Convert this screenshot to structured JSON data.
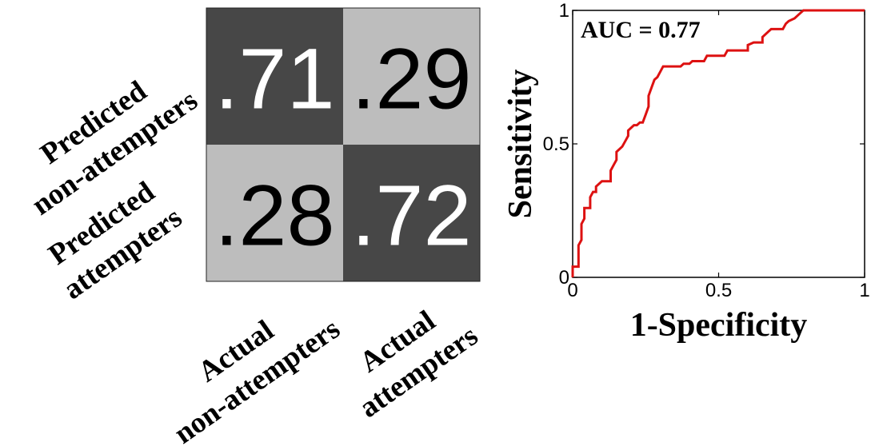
{
  "chart_data": [
    {
      "type": "heatmap",
      "row_labels": [
        [
          "Predicted",
          "non-attempters"
        ],
        [
          "Predicted",
          "attempters"
        ]
      ],
      "col_labels": [
        [
          "Actual",
          "non-attempters"
        ],
        [
          "Actual",
          "attempters"
        ]
      ],
      "cells": [
        [
          {
            "value": 0.71,
            "label": ".71",
            "fill": "#474747",
            "text_color": "#ffffff"
          },
          {
            "value": 0.29,
            "label": ".29",
            "fill": "#bdbdbd",
            "text_color": "#000000"
          }
        ],
        [
          {
            "value": 0.28,
            "label": ".28",
            "fill": "#bdbdbd",
            "text_color": "#000000"
          },
          {
            "value": 0.72,
            "label": ".72",
            "fill": "#474747",
            "text_color": "#ffffff"
          }
        ]
      ]
    },
    {
      "type": "line",
      "xlabel": "1-Specificity",
      "ylabel": "Sensitivity",
      "xlim": [
        0,
        1
      ],
      "ylim": [
        0,
        1
      ],
      "xticks": [
        "0",
        "0.5",
        "1"
      ],
      "yticks": [
        "0",
        "0.5",
        "1"
      ],
      "annotation": {
        "prefix": "AUC = ",
        "value": "0.77"
      },
      "line_color": "#dd1111",
      "series": [
        {
          "points": [
            [
              0.0,
              0.0
            ],
            [
              0.0,
              0.04
            ],
            [
              0.02,
              0.04
            ],
            [
              0.02,
              0.12
            ],
            [
              0.03,
              0.14
            ],
            [
              0.03,
              0.2
            ],
            [
              0.04,
              0.22
            ],
            [
              0.04,
              0.26
            ],
            [
              0.06,
              0.26
            ],
            [
              0.06,
              0.3
            ],
            [
              0.07,
              0.32
            ],
            [
              0.08,
              0.32
            ],
            [
              0.08,
              0.34
            ],
            [
              0.1,
              0.36
            ],
            [
              0.13,
              0.36
            ],
            [
              0.13,
              0.4
            ],
            [
              0.14,
              0.42
            ],
            [
              0.15,
              0.44
            ],
            [
              0.15,
              0.47
            ],
            [
              0.17,
              0.49
            ],
            [
              0.18,
              0.51
            ],
            [
              0.19,
              0.53
            ],
            [
              0.19,
              0.55
            ],
            [
              0.21,
              0.57
            ],
            [
              0.22,
              0.57
            ],
            [
              0.23,
              0.58
            ],
            [
              0.24,
              0.58
            ],
            [
              0.25,
              0.61
            ],
            [
              0.26,
              0.64
            ],
            [
              0.26,
              0.68
            ],
            [
              0.27,
              0.71
            ],
            [
              0.28,
              0.74
            ],
            [
              0.29,
              0.75
            ],
            [
              0.3,
              0.77
            ],
            [
              0.31,
              0.79
            ],
            [
              0.37,
              0.79
            ],
            [
              0.38,
              0.8
            ],
            [
              0.4,
              0.8
            ],
            [
              0.41,
              0.81
            ],
            [
              0.45,
              0.81
            ],
            [
              0.46,
              0.83
            ],
            [
              0.52,
              0.83
            ],
            [
              0.53,
              0.85
            ],
            [
              0.6,
              0.85
            ],
            [
              0.6,
              0.87
            ],
            [
              0.62,
              0.88
            ],
            [
              0.65,
              0.88
            ],
            [
              0.65,
              0.9
            ],
            [
              0.67,
              0.92
            ],
            [
              0.68,
              0.93
            ],
            [
              0.72,
              0.93
            ],
            [
              0.73,
              0.95
            ],
            [
              0.74,
              0.96
            ],
            [
              0.76,
              0.97
            ],
            [
              0.77,
              0.98
            ],
            [
              0.78,
              0.99
            ],
            [
              0.79,
              1.0
            ],
            [
              1.0,
              1.0
            ]
          ]
        }
      ]
    }
  ]
}
